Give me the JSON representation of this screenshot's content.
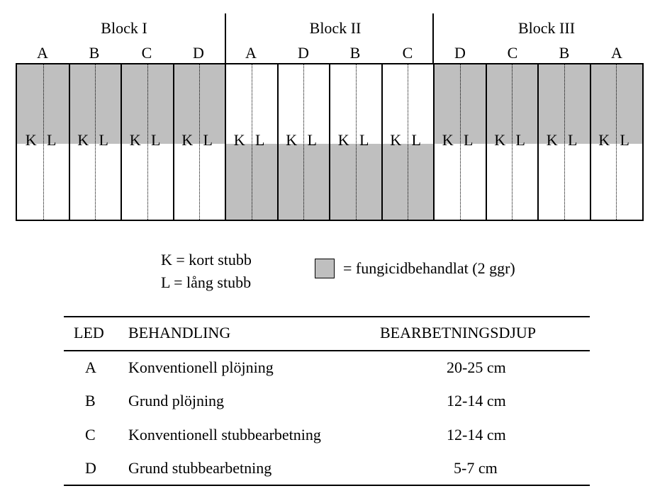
{
  "blocks": [
    {
      "title": "Block I",
      "plots": [
        "A",
        "B",
        "C",
        "D"
      ],
      "fungicide_half": "top"
    },
    {
      "title": "Block II",
      "plots": [
        "A",
        "D",
        "B",
        "C"
      ],
      "fungicide_half": "bottom"
    },
    {
      "title": "Block III",
      "plots": [
        "D",
        "C",
        "B",
        "A"
      ],
      "fungicide_half": "top"
    }
  ],
  "subplot_labels": {
    "k": "K",
    "l": "L"
  },
  "legend": {
    "k_def": "K = kort stubb",
    "l_def": "L = lång stubb",
    "fungicide_def": "= fungicidbehandlat (2 ggr)"
  },
  "colors": {
    "fungicide": "#bfbfbf"
  },
  "table": {
    "headers": {
      "led": "LED",
      "behandling": "BEHANDLING",
      "djup": "BEARBETNINGSDJUP"
    },
    "rows": [
      {
        "led": "A",
        "behandling": "Konventionell plöjning",
        "djup": "20-25 cm"
      },
      {
        "led": "B",
        "behandling": "Grund plöjning",
        "djup": "12-14 cm"
      },
      {
        "led": "C",
        "behandling": "Konventionell stubbearbetning",
        "djup": "12-14 cm"
      },
      {
        "led": "D",
        "behandling": "Grund stubbearbetning",
        "djup": "5-7 cm"
      }
    ]
  }
}
